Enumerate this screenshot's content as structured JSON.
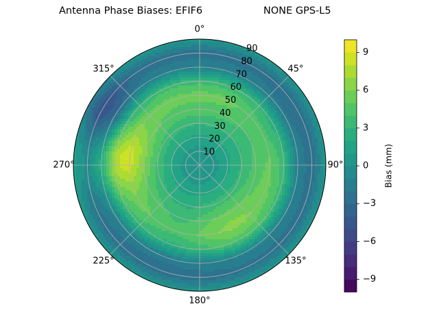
{
  "title": {
    "main": "Antenna Phase Biases: EFIF6",
    "right": "NONE GPS-L5"
  },
  "chart_data": {
    "type": "heatmap",
    "projection": "polar",
    "theta_direction": "clockwise",
    "theta_zero": "north",
    "theta_ticks": [
      "0°",
      "45°",
      "90°",
      "135°",
      "180°",
      "225°",
      "270°",
      "315°"
    ],
    "r_ticks": [
      "10",
      "20",
      "30",
      "40",
      "50",
      "60",
      "70",
      "80",
      "90"
    ],
    "r_range": [
      0,
      90
    ],
    "grid": true,
    "colormap": "viridis",
    "colorbar": {
      "label": "Bias (mm)",
      "range": [
        -10,
        10
      ],
      "ticks": [
        "−9",
        "−6",
        "−3",
        "0",
        "3",
        "6",
        "9"
      ],
      "levels": 20
    },
    "zenith_rings": [
      {
        "zenith": 0,
        "value": 0.2
      },
      {
        "zenith": 10,
        "value": 0.6
      },
      {
        "zenith": 20,
        "value": 1.8
      },
      {
        "zenith": 30,
        "value": 3.2
      },
      {
        "zenith": 40,
        "value": 4.6
      },
      {
        "zenith": 50,
        "value": 5.4
      },
      {
        "zenith": 60,
        "value": 3.6
      },
      {
        "zenith": 70,
        "value": -1.2
      },
      {
        "zenith": 80,
        "value": -2.6
      },
      {
        "zenith": 90,
        "value": 0.4
      }
    ],
    "anomalies": [
      {
        "azimuth": 290,
        "zenith": 55,
        "value": 2.0
      },
      {
        "azimuth": 270,
        "zenith": 65,
        "value": 3.5
      },
      {
        "azimuth": 60,
        "zenith": 55,
        "value": -1.0
      },
      {
        "azimuth": 300,
        "zenith": 75,
        "value": -3.0
      },
      {
        "azimuth": 200,
        "zenith": 50,
        "value": -1.0
      },
      {
        "azimuth": 150,
        "zenith": 50,
        "value": 1.0
      }
    ]
  }
}
